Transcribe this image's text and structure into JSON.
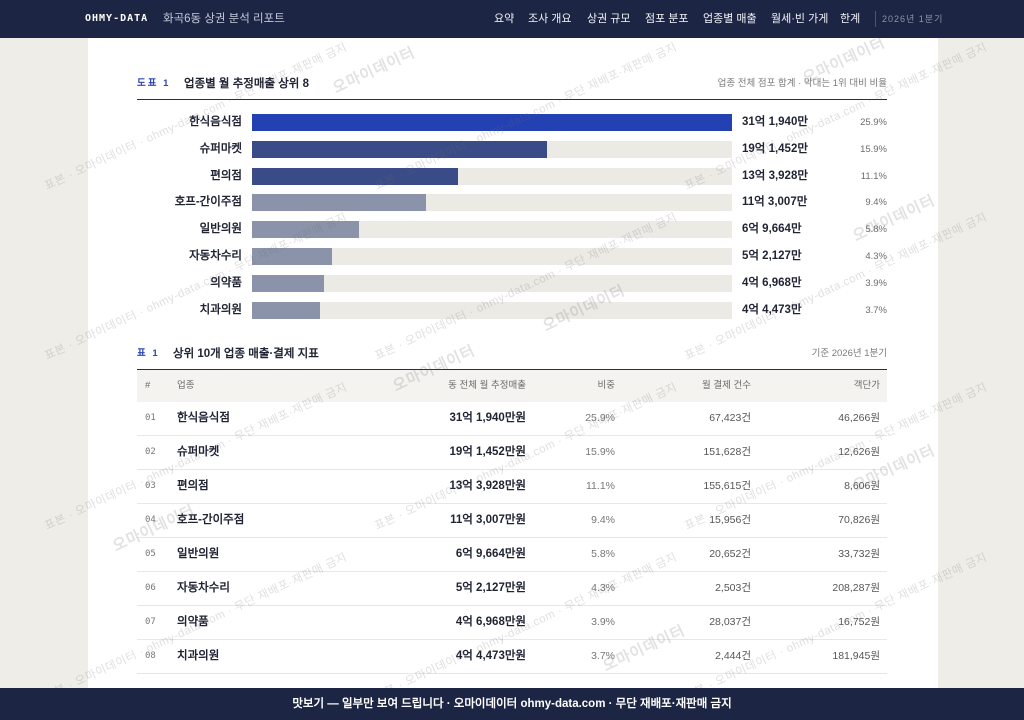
{
  "header": {
    "brand": "OHMY-DATA",
    "title": "화곡6동 상권 분석 리포트",
    "nav": [
      "요약",
      "조사 개요",
      "상권 규모",
      "점포 분포",
      "업종별 매출",
      "월세·빈 가게",
      "한계"
    ],
    "period": "2026년 1분기"
  },
  "figure": {
    "label": "도표 1",
    "note": "업종 전체 점포 합계 · 막대는 1위 대비 비율"
  },
  "chart_data": {
    "type": "bar",
    "orientation": "horizontal",
    "title": "업종별 월 추정매출 상위 8",
    "categories": [
      "한식음식점",
      "슈퍼마켓",
      "편의점",
      "호프-간이주점",
      "일반의원",
      "자동차수리",
      "의약품",
      "치과의원"
    ],
    "values": [
      3119400000,
      1914520000,
      1339280000,
      1130070000,
      696640000,
      521270000,
      469680000,
      444730000
    ],
    "value_labels": [
      "31억 1,940만",
      "19억 1,452만",
      "13억 3,928만",
      "11억 3,007만",
      "6억 9,664만",
      "5억 2,127만",
      "4억 6,968만",
      "4억 4,473만"
    ],
    "shares": [
      "25.9%",
      "15.9%",
      "11.1%",
      "9.4%",
      "5.8%",
      "4.3%",
      "3.9%",
      "3.7%"
    ],
    "bar_colors": [
      "#2441b3",
      "#3a4c87",
      "#3a4c87",
      "#8a93aa",
      "#8a93aa",
      "#8a93aa",
      "#8a93aa",
      "#8a93aa"
    ]
  },
  "table": {
    "label": "표 1",
    "title": "상위 10개 업종 매출·결제 지표",
    "note": "기준 2026년 1분기",
    "columns": [
      "#",
      "업종",
      "동 전체 월 추정매출",
      "비중",
      "월 결제 건수",
      "객단가"
    ],
    "rows": [
      [
        "01",
        "한식음식점",
        "31억 1,940만원",
        "25.9%",
        "67,423건",
        "46,266원"
      ],
      [
        "02",
        "슈퍼마켓",
        "19억 1,452만원",
        "15.9%",
        "151,628건",
        "12,626원"
      ],
      [
        "03",
        "편의점",
        "13억 3,928만원",
        "11.1%",
        "155,615건",
        "8,606원"
      ],
      [
        "04",
        "호프-간이주점",
        "11억 3,007만원",
        "9.4%",
        "15,956건",
        "70,826원"
      ],
      [
        "05",
        "일반의원",
        "6억 9,664만원",
        "5.8%",
        "20,652건",
        "33,732원"
      ],
      [
        "06",
        "자동차수리",
        "5억 2,127만원",
        "4.3%",
        "2,503건",
        "208,287원"
      ],
      [
        "07",
        "의약품",
        "4억 6,968만원",
        "3.9%",
        "28,037건",
        "16,752원"
      ],
      [
        "08",
        "치과의원",
        "4억 4,473만원",
        "3.7%",
        "2,444건",
        "181,945원"
      ]
    ]
  },
  "footer": {
    "notice": "맛보기 — 일부만 보여 드립니다 · 오마이데이터 ohmy-data.com · 무단 재배포·재판매 금지"
  },
  "watermark": {
    "line": "표본 · 오마이데이터 · ohmy-data.com · 무단 재배포·재판매 금지",
    "brand": "오마이데이터"
  },
  "colors": {
    "header_bg": "#1c2543",
    "accent": "#2b47b5"
  }
}
